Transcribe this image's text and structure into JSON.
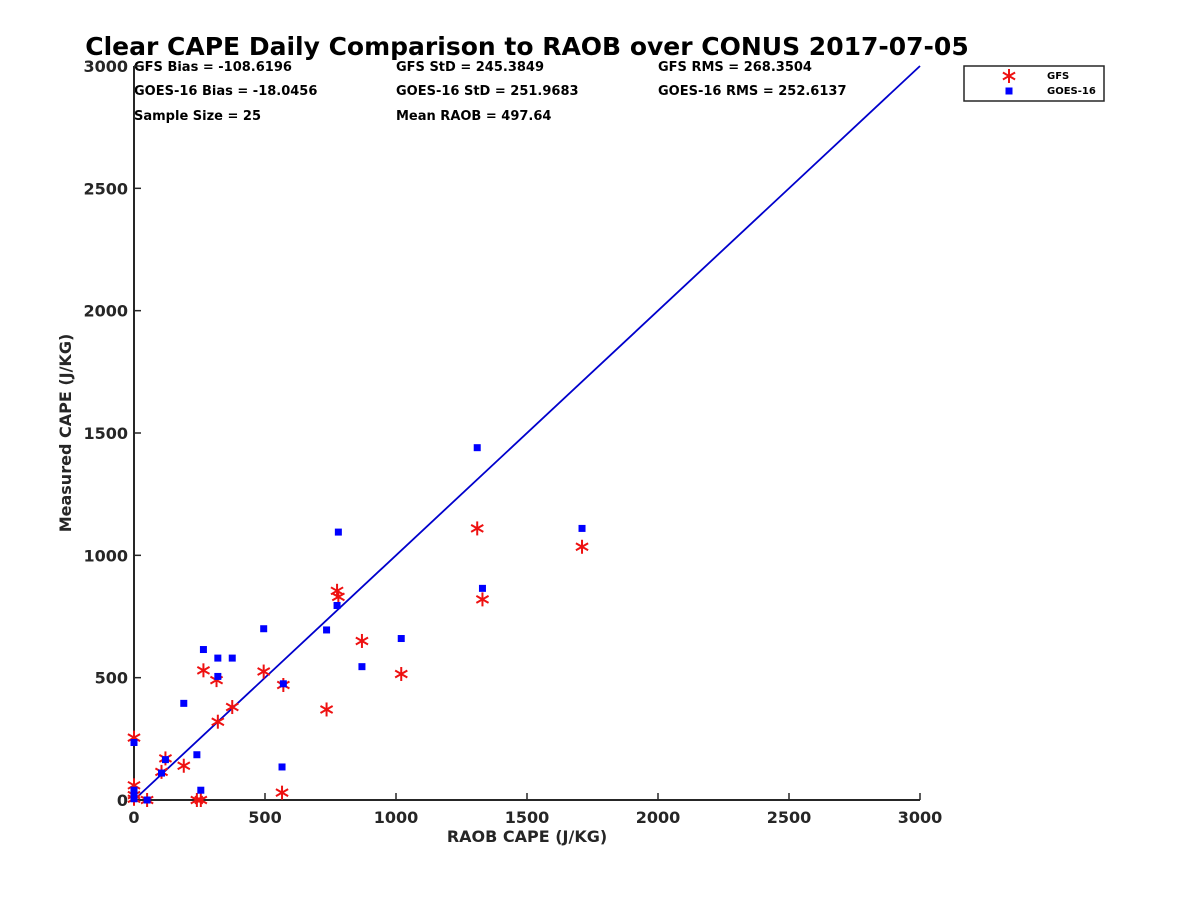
{
  "chart_data": {
    "type": "scatter",
    "title": "Clear CAPE Daily Comparison to RAOB over CONUS 2017-07-05",
    "xlabel": "RAOB CAPE (J/KG)",
    "ylabel": "Measured CAPE (J/KG)",
    "xlim": [
      0,
      3000
    ],
    "ylim": [
      0,
      3000
    ],
    "x_ticks": [
      "0",
      "500",
      "1000",
      "1500",
      "2000",
      "2500",
      "3000"
    ],
    "y_ticks": [
      "0",
      "500",
      "1000",
      "1500",
      "2000",
      "2500",
      "3000"
    ],
    "grid": false,
    "legend_position": "top-right",
    "stats": [
      "GFS Bias = -108.6196",
      "GOES-16 Bias = -18.0456",
      "Sample Size = 25",
      "GFS StD = 245.3849",
      "GOES-16 StD = 251.9683",
      "Mean RAOB = 497.64",
      "GFS RMS = 268.3504",
      "GOES-16 RMS = 252.6137"
    ],
    "reference_line": {
      "x": [
        0,
        3000
      ],
      "y": [
        0,
        3000
      ],
      "color": "#0000cc"
    },
    "series": [
      {
        "name": "GFS",
        "marker": "asterisk",
        "color": "#ee1111",
        "x": [
          0,
          0,
          0,
          0,
          50,
          105,
          120,
          190,
          240,
          255,
          265,
          315,
          320,
          375,
          495,
          565,
          570,
          735,
          775,
          780,
          870,
          1020,
          1310,
          1330,
          1710
        ],
        "y": [
          255,
          60,
          20,
          5,
          0,
          115,
          170,
          140,
          0,
          0,
          530,
          490,
          320,
          380,
          525,
          30,
          470,
          370,
          855,
          830,
          650,
          515,
          1110,
          820,
          1035
        ]
      },
      {
        "name": "GOES-16",
        "marker": "square",
        "color": "#0000ff",
        "x": [
          0,
          0,
          0,
          0,
          50,
          105,
          120,
          190,
          240,
          255,
          265,
          320,
          320,
          375,
          495,
          565,
          570,
          735,
          775,
          780,
          870,
          1020,
          1310,
          1330,
          1710
        ],
        "y": [
          235,
          40,
          20,
          5,
          0,
          110,
          165,
          395,
          185,
          40,
          615,
          580,
          505,
          580,
          700,
          135,
          475,
          695,
          795,
          1095,
          545,
          660,
          1440,
          865,
          1110
        ]
      }
    ]
  }
}
